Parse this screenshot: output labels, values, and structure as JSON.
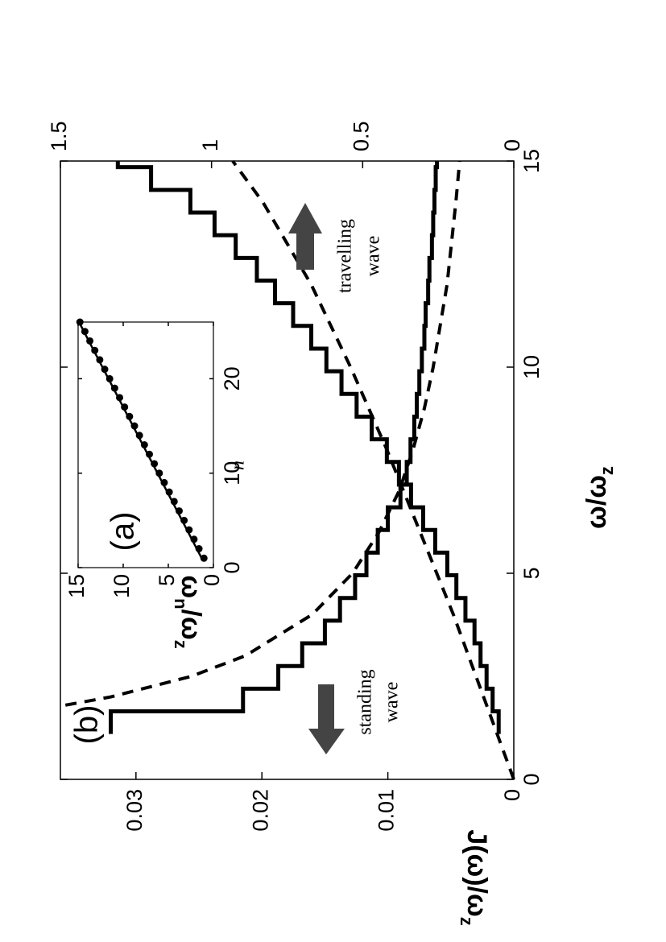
{
  "chart_data": {
    "type": "line",
    "xlabel": [
      "ω/ω",
      "z"
    ],
    "ylabel": [
      "J(ω)/ω",
      "z"
    ],
    "xlim": [
      0,
      15
    ],
    "xticks": [
      0,
      5,
      10,
      15
    ],
    "ylim": [
      0,
      0.036
    ],
    "yticks": [
      0,
      0.01,
      0.02,
      0.03
    ],
    "y2lim": [
      0,
      1.5
    ],
    "y2ticks": [
      0,
      0.5,
      1,
      1.5
    ],
    "annotations": [
      "(b)",
      "standing",
      "wave",
      "travelling",
      "wave"
    ],
    "series": [
      {
        "style": "step",
        "color": "#000000",
        "x": [
          1.1,
          1.65,
          2.2,
          2.75,
          3.3,
          3.85,
          4.4,
          4.95,
          5.5,
          6.05,
          6.6,
          7.15,
          7.7,
          8.25,
          8.8,
          9.35,
          9.9,
          10.45,
          11,
          11.55,
          12.1,
          12.65,
          13.2,
          13.75,
          14.3,
          14.85,
          15
        ],
        "values": [
          0.032,
          0.0215,
          0.0187,
          0.0168,
          0.015,
          0.0138,
          0.0126,
          0.0117,
          0.0108,
          0.01,
          0.009,
          0.0085,
          0.0082,
          0.0079,
          0.0077,
          0.0075,
          0.0073,
          0.0071,
          0.007,
          0.0068,
          0.0067,
          0.0065,
          0.0064,
          0.0063,
          0.0062,
          0.0061,
          0.0061
        ]
      },
      {
        "style": "step",
        "color": "#000000",
        "axis": "y2",
        "x": [
          1.1,
          1.65,
          2.2,
          2.75,
          3.3,
          3.85,
          4.4,
          4.95,
          5.5,
          6.05,
          6.6,
          7.15,
          7.7,
          8.25,
          8.8,
          9.35,
          9.9,
          10.45,
          11,
          11.55,
          12.1,
          12.65,
          13.2,
          13.75,
          14.3,
          14.85,
          15
        ],
        "values": [
          0.05,
          0.07,
          0.09,
          0.11,
          0.13,
          0.16,
          0.19,
          0.22,
          0.26,
          0.3,
          0.34,
          0.38,
          0.42,
          0.47,
          0.52,
          0.57,
          0.62,
          0.67,
          0.73,
          0.79,
          0.85,
          0.92,
          0.99,
          1.07,
          1.2,
          1.31,
          1.31
        ]
      },
      {
        "style": "dashed",
        "color": "#000000",
        "x": [
          1.8,
          2,
          2.5,
          3,
          4,
          5,
          6,
          7,
          8,
          9,
          10,
          12,
          14,
          15
        ],
        "values": [
          0.0356,
          0.032,
          0.0256,
          0.0213,
          0.016,
          0.0128,
          0.0107,
          0.0091,
          0.008,
          0.0071,
          0.0064,
          0.0053,
          0.0046,
          0.0043
        ]
      },
      {
        "style": "dashed",
        "color": "#000000",
        "axis": "y2",
        "x": [
          0,
          2,
          4,
          6,
          8,
          10,
          12,
          14,
          15
        ],
        "values": [
          0,
          0.1,
          0.2,
          0.31,
          0.42,
          0.54,
          0.67,
          0.83,
          0.93
        ]
      }
    ],
    "inset": {
      "type": "scatter",
      "label": "(a)",
      "xlabel": "n",
      "ylabel": [
        "ω",
        "n",
        "/ω",
        "z"
      ],
      "xlim": [
        0,
        26
      ],
      "xticks": [
        0,
        10,
        20
      ],
      "ylim": [
        0,
        15
      ],
      "yticks": [
        0,
        5,
        10,
        15
      ],
      "series": [
        {
          "style": "dots",
          "color": "#000000",
          "x": [
            1,
            2,
            3,
            4,
            5,
            6,
            7,
            8,
            9,
            10,
            11,
            12,
            13,
            14,
            15,
            16,
            17,
            18,
            19,
            20,
            21,
            22,
            23,
            24,
            25,
            26
          ],
          "values": [
            1.05,
            1.6,
            2.15,
            2.7,
            3.25,
            3.8,
            4.35,
            4.9,
            5.45,
            6,
            6.55,
            7.1,
            7.65,
            8.2,
            8.75,
            9.3,
            9.85,
            10.4,
            10.95,
            11.5,
            12.05,
            12.6,
            13.15,
            13.7,
            14.25,
            14.8
          ]
        },
        {
          "style": "solid",
          "color": "#000000",
          "x": [
            1,
            26
          ],
          "values": [
            1.3,
            14.9
          ]
        }
      ]
    }
  }
}
